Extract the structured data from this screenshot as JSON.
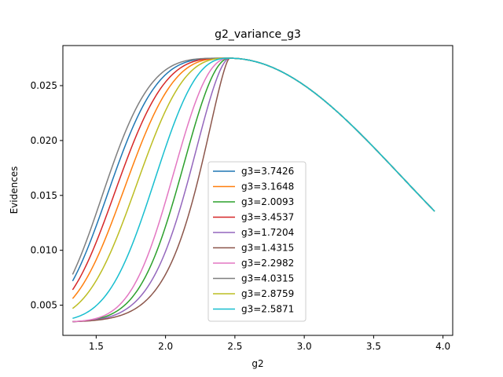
{
  "chart_data": {
    "type": "line",
    "title": "g2_variance_g3",
    "xlabel": "g2",
    "ylabel": "Evidences",
    "xlim": [
      1.26,
      4.07
    ],
    "ylim": [
      0.00225,
      0.02865
    ],
    "xticks": [
      "1.5",
      "2.0",
      "2.5",
      "3.0",
      "3.5",
      "4.0"
    ],
    "xtick_values": [
      1.5,
      2.0,
      2.5,
      3.0,
      3.5,
      4.0
    ],
    "yticks": [
      "0.005",
      "0.010",
      "0.015",
      "0.020",
      "0.025"
    ],
    "ytick_values": [
      0.005,
      0.01,
      0.015,
      0.02,
      0.025
    ],
    "grid": false,
    "legend_position": "center-bottom",
    "x_range": [
      1.33,
      3.94
    ],
    "peak": {
      "x": 2.46,
      "y": 0.0275
    },
    "right_end": {
      "x": 3.94,
      "y": 0.01355
    },
    "floor": 0.00345,
    "series": [
      {
        "name": "g3=3.7426",
        "color": "#1f77b4",
        "start_y": 0.0072,
        "k": 3.74
      },
      {
        "name": "g3=3.1648",
        "color": "#ff7f0e",
        "start_y": 0.0056,
        "k": 3.16
      },
      {
        "name": "g3=2.0093",
        "color": "#2ca02c",
        "start_y": 0.0035,
        "k": 2.01
      },
      {
        "name": "g3=3.4537",
        "color": "#d62728",
        "start_y": 0.0064,
        "k": 3.45
      },
      {
        "name": "g3=1.7204",
        "color": "#9467bd",
        "start_y": 0.0035,
        "k": 1.72
      },
      {
        "name": "g3=1.4315",
        "color": "#8c564b",
        "start_y": 0.0035,
        "k": 1.43
      },
      {
        "name": "g3=2.2982",
        "color": "#e377c2",
        "start_y": 0.0035,
        "k": 2.3
      },
      {
        "name": "g3=4.0315",
        "color": "#7f7f7f",
        "start_y": 0.0078,
        "k": 4.03
      },
      {
        "name": "g3=2.8759",
        "color": "#bcbd22",
        "start_y": 0.0047,
        "k": 2.88
      },
      {
        "name": "g3=2.5871",
        "color": "#17becf",
        "start_y": 0.0038,
        "k": 2.59
      }
    ]
  }
}
